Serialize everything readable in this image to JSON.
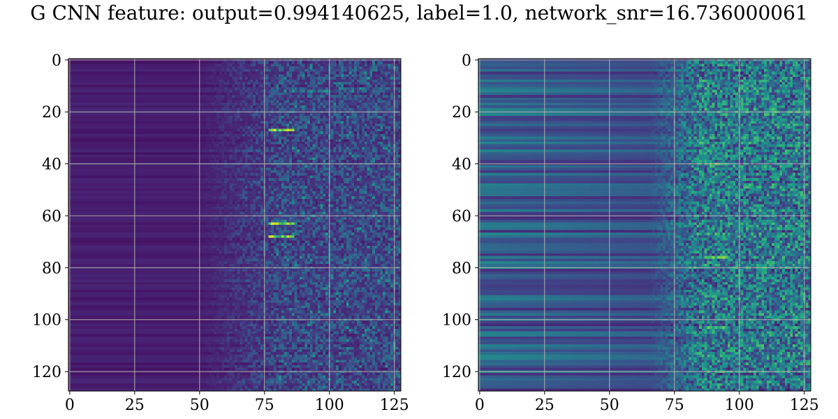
{
  "title": "G CNN feature: output=0.994140625, label=1.0, network_snr=16.736000061",
  "colors": {
    "colormap": "viridis",
    "grid": "#b0b0b0",
    "axes": "#000000",
    "background": "#ffffff"
  },
  "chart_data": [
    {
      "type": "heatmap",
      "panel": "left",
      "rows": 128,
      "cols": 128,
      "xlim": [
        -0.5,
        127.5
      ],
      "ylim": [
        127.5,
        -0.5
      ],
      "xticks": [
        0,
        25,
        50,
        75,
        100,
        125
      ],
      "yticks": [
        0,
        20,
        40,
        60,
        80,
        100,
        120
      ],
      "grid": true,
      "colormap": "viridis",
      "description_of_values": {
        "background_level": 0.08,
        "onset_column": 50,
        "peak_column": 80,
        "hot_rows": [
          27,
          63,
          68
        ],
        "hot_row_value": 1.0
      }
    },
    {
      "type": "heatmap",
      "panel": "right",
      "rows": 128,
      "cols": 128,
      "xlim": [
        -0.5,
        127.5
      ],
      "ylim": [
        127.5,
        -0.5
      ],
      "xticks": [
        0,
        25,
        50,
        75,
        100,
        125
      ],
      "yticks": [
        0,
        20,
        40,
        60,
        80,
        100,
        120
      ],
      "grid": true,
      "colormap": "viridis",
      "description_of_values": {
        "background_level": 0.25,
        "onset_column": 75,
        "peak_column": 90,
        "hot_rows": [
          40,
          76,
          103
        ],
        "hot_row_value": 0.85
      }
    }
  ]
}
